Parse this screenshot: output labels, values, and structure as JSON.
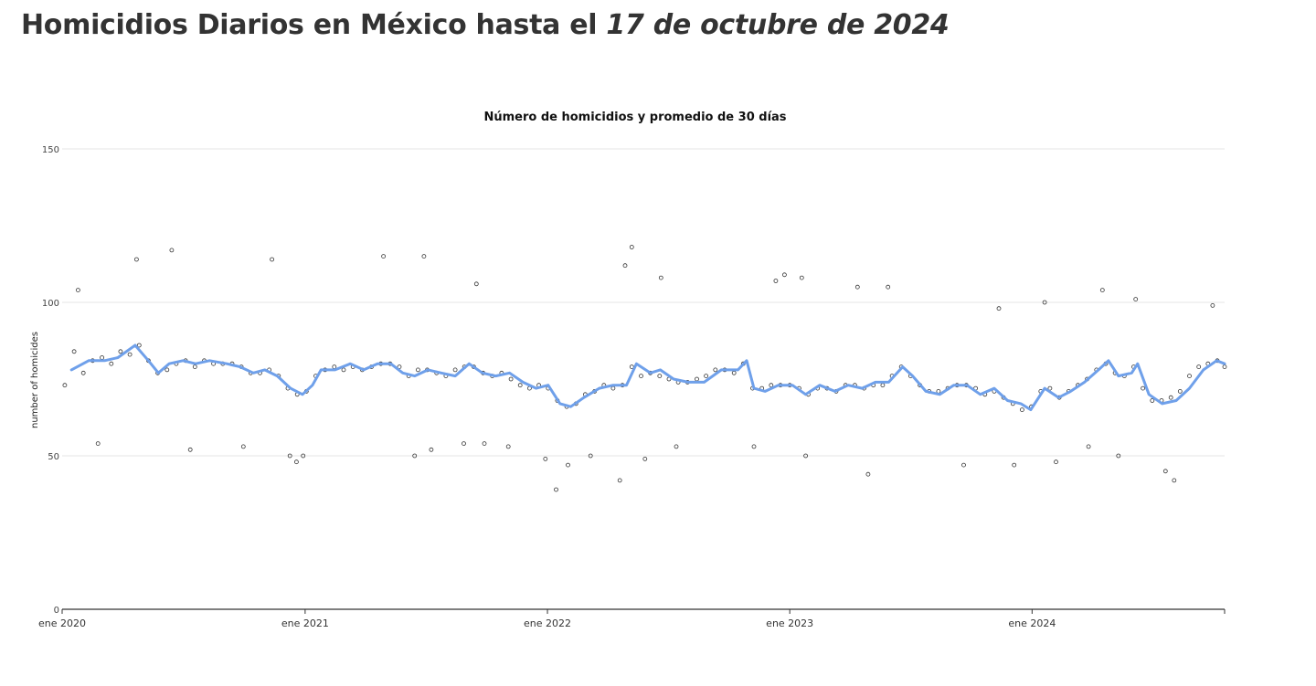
{
  "page": {
    "title_prefix": "Homicidios Diarios en México hasta el",
    "title_date": "17 de octubre de 2024"
  },
  "chart_data": {
    "type": "scatter",
    "title": "Número de homicidios y promedio de 30 días",
    "xlabel": "",
    "ylabel": "number of homicides",
    "x_range": [
      "2020-01-01",
      "2024-10-17"
    ],
    "ylim": [
      0,
      150
    ],
    "y_ticks": [
      0,
      50,
      100,
      150
    ],
    "x_ticks": [
      {
        "date": "2020-01-01",
        "label": "ene 2020"
      },
      {
        "date": "2021-01-01",
        "label": "ene 2021"
      },
      {
        "date": "2022-01-01",
        "label": "ene 2022"
      },
      {
        "date": "2023-01-01",
        "label": "ene 2023"
      },
      {
        "date": "2024-01-01",
        "label": "ene 2024"
      }
    ],
    "grid": true,
    "legend": "none",
    "colors": {
      "points": "#333333",
      "average_line": "#6fa0ea",
      "grid": "#e6e6e6",
      "axis": "#333333"
    },
    "series": [
      {
        "kind": "points",
        "points": [
          [
            "2020-01-05",
            73
          ],
          [
            "2020-01-19",
            84
          ],
          [
            "2020-02-02",
            77
          ],
          [
            "2020-02-16",
            81
          ],
          [
            "2020-03-01",
            82
          ],
          [
            "2020-03-15",
            80
          ],
          [
            "2020-03-29",
            84
          ],
          [
            "2020-04-12",
            83
          ],
          [
            "2020-04-26",
            86
          ],
          [
            "2020-05-10",
            81
          ],
          [
            "2020-05-24",
            77
          ],
          [
            "2020-06-07",
            78
          ],
          [
            "2020-06-21",
            80
          ],
          [
            "2020-07-05",
            81
          ],
          [
            "2020-07-19",
            79
          ],
          [
            "2020-08-02",
            81
          ],
          [
            "2020-08-16",
            80
          ],
          [
            "2020-08-30",
            80
          ],
          [
            "2020-09-13",
            80
          ],
          [
            "2020-09-27",
            79
          ],
          [
            "2020-10-11",
            77
          ],
          [
            "2020-10-25",
            77
          ],
          [
            "2020-11-08",
            78
          ],
          [
            "2020-11-22",
            76
          ],
          [
            "2020-12-06",
            72
          ],
          [
            "2020-12-20",
            70
          ],
          [
            "2021-01-03",
            71
          ],
          [
            "2021-01-17",
            76
          ],
          [
            "2021-01-31",
            78
          ],
          [
            "2021-02-14",
            79
          ],
          [
            "2021-02-28",
            78
          ],
          [
            "2021-03-14",
            79
          ],
          [
            "2021-03-28",
            78
          ],
          [
            "2021-04-11",
            79
          ],
          [
            "2021-04-25",
            80
          ],
          [
            "2021-05-09",
            80
          ],
          [
            "2021-05-23",
            79
          ],
          [
            "2021-06-06",
            76
          ],
          [
            "2021-06-20",
            78
          ],
          [
            "2021-07-04",
            78
          ],
          [
            "2021-07-18",
            77
          ],
          [
            "2021-08-01",
            76
          ],
          [
            "2021-08-15",
            78
          ],
          [
            "2021-08-29",
            79
          ],
          [
            "2021-09-12",
            79
          ],
          [
            "2021-09-26",
            77
          ],
          [
            "2021-10-10",
            76
          ],
          [
            "2021-10-24",
            77
          ],
          [
            "2021-11-07",
            75
          ],
          [
            "2021-11-21",
            73
          ],
          [
            "2021-12-05",
            72
          ],
          [
            "2021-12-19",
            73
          ],
          [
            "2022-01-02",
            72
          ],
          [
            "2022-01-16",
            68
          ],
          [
            "2022-01-30",
            66
          ],
          [
            "2022-02-13",
            67
          ],
          [
            "2022-02-27",
            70
          ],
          [
            "2022-03-13",
            71
          ],
          [
            "2022-03-27",
            73
          ],
          [
            "2022-04-10",
            72
          ],
          [
            "2022-04-24",
            73
          ],
          [
            "2022-05-08",
            79
          ],
          [
            "2022-05-22",
            76
          ],
          [
            "2022-06-05",
            77
          ],
          [
            "2022-06-19",
            76
          ],
          [
            "2022-07-03",
            75
          ],
          [
            "2022-07-17",
            74
          ],
          [
            "2022-07-31",
            74
          ],
          [
            "2022-08-14",
            75
          ],
          [
            "2022-08-28",
            76
          ],
          [
            "2022-09-11",
            78
          ],
          [
            "2022-09-25",
            78
          ],
          [
            "2022-10-09",
            77
          ],
          [
            "2022-10-23",
            80
          ],
          [
            "2022-11-06",
            72
          ],
          [
            "2022-11-20",
            72
          ],
          [
            "2022-12-04",
            73
          ],
          [
            "2022-12-18",
            73
          ],
          [
            "2023-01-01",
            73
          ],
          [
            "2023-01-15",
            72
          ],
          [
            "2023-01-29",
            70
          ],
          [
            "2023-02-12",
            72
          ],
          [
            "2023-02-26",
            72
          ],
          [
            "2023-03-12",
            71
          ],
          [
            "2023-03-26",
            73
          ],
          [
            "2023-04-09",
            73
          ],
          [
            "2023-04-23",
            72
          ],
          [
            "2023-05-07",
            73
          ],
          [
            "2023-05-21",
            73
          ],
          [
            "2023-06-04",
            76
          ],
          [
            "2023-06-18",
            79
          ],
          [
            "2023-07-02",
            76
          ],
          [
            "2023-07-16",
            73
          ],
          [
            "2023-07-30",
            71
          ],
          [
            "2023-08-13",
            71
          ],
          [
            "2023-08-27",
            72
          ],
          [
            "2023-09-10",
            73
          ],
          [
            "2023-09-24",
            73
          ],
          [
            "2023-10-08",
            72
          ],
          [
            "2023-10-22",
            70
          ],
          [
            "2023-11-05",
            71
          ],
          [
            "2023-11-19",
            69
          ],
          [
            "2023-12-03",
            67
          ],
          [
            "2023-12-17",
            65
          ],
          [
            "2023-12-31",
            66
          ],
          [
            "2024-01-14",
            71
          ],
          [
            "2024-01-28",
            72
          ],
          [
            "2024-02-11",
            69
          ],
          [
            "2024-02-25",
            71
          ],
          [
            "2024-03-10",
            73
          ],
          [
            "2024-03-24",
            75
          ],
          [
            "2024-04-07",
            78
          ],
          [
            "2024-04-21",
            80
          ],
          [
            "2024-05-05",
            77
          ],
          [
            "2024-05-19",
            76
          ],
          [
            "2024-06-02",
            79
          ],
          [
            "2024-06-16",
            72
          ],
          [
            "2024-06-30",
            68
          ],
          [
            "2024-07-14",
            68
          ],
          [
            "2024-07-28",
            69
          ],
          [
            "2024-08-11",
            71
          ],
          [
            "2024-08-25",
            76
          ],
          [
            "2024-09-08",
            79
          ],
          [
            "2024-09-22",
            80
          ],
          [
            "2024-10-06",
            81
          ],
          [
            "2024-10-17",
            79
          ]
        ],
        "extremes": [
          [
            "2020-01-25",
            104
          ],
          [
            "2020-02-24",
            54
          ],
          [
            "2020-04-22",
            114
          ],
          [
            "2020-06-14",
            117
          ],
          [
            "2020-07-12",
            52
          ],
          [
            "2020-09-30",
            53
          ],
          [
            "2020-11-12",
            114
          ],
          [
            "2020-12-09",
            50
          ],
          [
            "2020-12-19",
            48
          ],
          [
            "2020-12-29",
            50
          ],
          [
            "2021-04-29",
            115
          ],
          [
            "2021-06-15",
            50
          ],
          [
            "2021-06-29",
            115
          ],
          [
            "2021-07-10",
            52
          ],
          [
            "2021-08-28",
            54
          ],
          [
            "2021-09-16",
            106
          ],
          [
            "2021-09-28",
            54
          ],
          [
            "2021-11-03",
            53
          ],
          [
            "2021-12-29",
            49
          ],
          [
            "2022-01-14",
            39
          ],
          [
            "2022-02-01",
            47
          ],
          [
            "2022-03-07",
            50
          ],
          [
            "2022-04-28",
            112
          ],
          [
            "2022-05-08",
            118
          ],
          [
            "2022-04-20",
            42
          ],
          [
            "2022-05-28",
            49
          ],
          [
            "2022-06-21",
            108
          ],
          [
            "2022-07-14",
            53
          ],
          [
            "2022-11-08",
            53
          ],
          [
            "2022-12-11",
            107
          ],
          [
            "2022-12-24",
            109
          ],
          [
            "2023-01-19",
            108
          ],
          [
            "2023-01-25",
            50
          ],
          [
            "2023-04-13",
            105
          ],
          [
            "2023-04-29",
            44
          ],
          [
            "2023-05-29",
            105
          ],
          [
            "2023-09-20",
            47
          ],
          [
            "2023-11-12",
            98
          ],
          [
            "2023-12-05",
            47
          ],
          [
            "2024-01-20",
            100
          ],
          [
            "2024-02-06",
            48
          ],
          [
            "2024-03-26",
            53
          ],
          [
            "2024-04-16",
            104
          ],
          [
            "2024-05-10",
            50
          ],
          [
            "2024-06-05",
            101
          ],
          [
            "2024-07-20",
            45
          ],
          [
            "2024-08-02",
            42
          ],
          [
            "2024-09-29",
            99
          ]
        ]
      },
      {
        "kind": "line",
        "points": [
          [
            "2020-01-15",
            78
          ],
          [
            "2020-02-10",
            81
          ],
          [
            "2020-03-05",
            81
          ],
          [
            "2020-03-25",
            82
          ],
          [
            "2020-04-20",
            86
          ],
          [
            "2020-05-10",
            81
          ],
          [
            "2020-05-25",
            77
          ],
          [
            "2020-06-10",
            80
          ],
          [
            "2020-07-01",
            81
          ],
          [
            "2020-07-20",
            80
          ],
          [
            "2020-08-10",
            81
          ],
          [
            "2020-09-05",
            80
          ],
          [
            "2020-09-25",
            79
          ],
          [
            "2020-10-15",
            77
          ],
          [
            "2020-11-01",
            78
          ],
          [
            "2020-11-20",
            76
          ],
          [
            "2020-12-10",
            72
          ],
          [
            "2020-12-28",
            70
          ],
          [
            "2021-01-12",
            73
          ],
          [
            "2021-01-25",
            78
          ],
          [
            "2021-02-15",
            78
          ],
          [
            "2021-03-10",
            80
          ],
          [
            "2021-03-30",
            78
          ],
          [
            "2021-04-20",
            80
          ],
          [
            "2021-05-10",
            80
          ],
          [
            "2021-05-28",
            77
          ],
          [
            "2021-06-15",
            76
          ],
          [
            "2021-07-05",
            78
          ],
          [
            "2021-07-25",
            77
          ],
          [
            "2021-08-15",
            76
          ],
          [
            "2021-09-05",
            80
          ],
          [
            "2021-09-25",
            77
          ],
          [
            "2021-10-15",
            76
          ],
          [
            "2021-11-05",
            77
          ],
          [
            "2021-11-25",
            74
          ],
          [
            "2021-12-15",
            72
          ],
          [
            "2022-01-02",
            73
          ],
          [
            "2022-01-20",
            67
          ],
          [
            "2022-02-05",
            66
          ],
          [
            "2022-02-25",
            69
          ],
          [
            "2022-03-20",
            72
          ],
          [
            "2022-04-10",
            73
          ],
          [
            "2022-04-30",
            73
          ],
          [
            "2022-05-15",
            80
          ],
          [
            "2022-06-05",
            77
          ],
          [
            "2022-06-20",
            78
          ],
          [
            "2022-07-10",
            75
          ],
          [
            "2022-08-01",
            74
          ],
          [
            "2022-08-25",
            74
          ],
          [
            "2022-09-20",
            78
          ],
          [
            "2022-10-15",
            78
          ],
          [
            "2022-10-28",
            81
          ],
          [
            "2022-11-08",
            72
          ],
          [
            "2022-11-25",
            71
          ],
          [
            "2022-12-15",
            73
          ],
          [
            "2023-01-05",
            73
          ],
          [
            "2023-01-25",
            70
          ],
          [
            "2023-02-15",
            73
          ],
          [
            "2023-03-10",
            71
          ],
          [
            "2023-03-30",
            73
          ],
          [
            "2023-04-20",
            72
          ],
          [
            "2023-05-10",
            74
          ],
          [
            "2023-05-30",
            74
          ],
          [
            "2023-06-20",
            79
          ],
          [
            "2023-07-05",
            76
          ],
          [
            "2023-07-25",
            71
          ],
          [
            "2023-08-15",
            70
          ],
          [
            "2023-09-05",
            73
          ],
          [
            "2023-09-25",
            73
          ],
          [
            "2023-10-15",
            70
          ],
          [
            "2023-11-05",
            72
          ],
          [
            "2023-11-25",
            68
          ],
          [
            "2023-12-15",
            67
          ],
          [
            "2023-12-30",
            65
          ],
          [
            "2024-01-20",
            72
          ],
          [
            "2024-02-10",
            69
          ],
          [
            "2024-02-28",
            71
          ],
          [
            "2024-03-20",
            74
          ],
          [
            "2024-04-10",
            78
          ],
          [
            "2024-04-25",
            81
          ],
          [
            "2024-05-10",
            76
          ],
          [
            "2024-05-30",
            77
          ],
          [
            "2024-06-08",
            80
          ],
          [
            "2024-06-25",
            70
          ],
          [
            "2024-07-15",
            67
          ],
          [
            "2024-08-05",
            68
          ],
          [
            "2024-08-25",
            72
          ],
          [
            "2024-09-15",
            78
          ],
          [
            "2024-10-05",
            81
          ],
          [
            "2024-10-17",
            80
          ]
        ]
      }
    ]
  }
}
